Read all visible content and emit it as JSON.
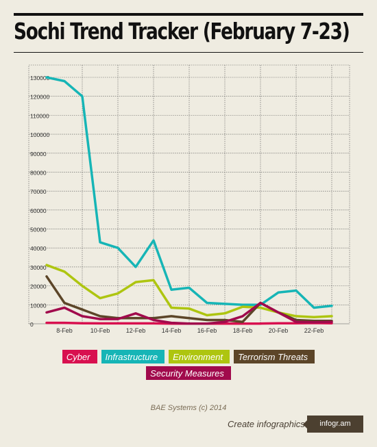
{
  "title": "Sochi Trend Tracker (February 7-23)",
  "footer": {
    "source": "BAE Systems (c) 2014",
    "cta": "Create infographics",
    "brand": "infogr.am"
  },
  "chart_data": {
    "type": "line",
    "title": "Sochi Trend Tracker (February 7-23)",
    "xlabel": "",
    "ylabel": "",
    "x": [
      "7-Feb",
      "8-Feb",
      "9-Feb",
      "10-Feb",
      "11-Feb",
      "12-Feb",
      "13-Feb",
      "14-Feb",
      "15-Feb",
      "16-Feb",
      "17-Feb",
      "18-Feb",
      "19-Feb",
      "20-Feb",
      "21-Feb",
      "22-Feb",
      "23-Feb"
    ],
    "x_tick_labels": [
      "8-Feb",
      "10-Feb",
      "12-Feb",
      "14-Feb",
      "16-Feb",
      "18-Feb",
      "20-Feb",
      "22-Feb"
    ],
    "y_ticks": [
      0,
      10000,
      20000,
      30000,
      40000,
      50000,
      60000,
      70000,
      80000,
      90000,
      100000,
      110000,
      120000,
      130000
    ],
    "ylim": [
      0,
      130000
    ],
    "grid": true,
    "legend_position": "bottom",
    "series": [
      {
        "name": "Cyber",
        "color": "#d8104f",
        "values": [
          500,
          500,
          300,
          200,
          200,
          200,
          200,
          100,
          100,
          100,
          100,
          100,
          100,
          300,
          300,
          400,
          300
        ]
      },
      {
        "name": "Infrastructure",
        "color": "#16b5b6",
        "values": [
          130000,
          128000,
          120000,
          43000,
          40000,
          30000,
          44000,
          18000,
          19000,
          11000,
          10500,
          10000,
          10000,
          16500,
          17500,
          8500,
          9500
        ]
      },
      {
        "name": "Environment",
        "color": "#aec510",
        "values": [
          31000,
          27500,
          20000,
          13500,
          16000,
          22000,
          23000,
          8500,
          8000,
          4500,
          5500,
          9000,
          8500,
          6000,
          4000,
          3500,
          4000
        ]
      },
      {
        "name": "Terrorism Threats",
        "color": "#5c4528",
        "values": [
          25000,
          11000,
          7500,
          4000,
          3000,
          3000,
          3000,
          4000,
          3000,
          2000,
          2000,
          1000,
          11000,
          6000,
          2000,
          1500,
          1500
        ]
      },
      {
        "name": "Security Measures",
        "color": "#a10a4c",
        "values": [
          6000,
          8500,
          4000,
          2500,
          2500,
          5500,
          2000,
          500,
          100,
          100,
          1000,
          4000,
          11000,
          6000,
          1000,
          800,
          1000
        ]
      }
    ]
  }
}
